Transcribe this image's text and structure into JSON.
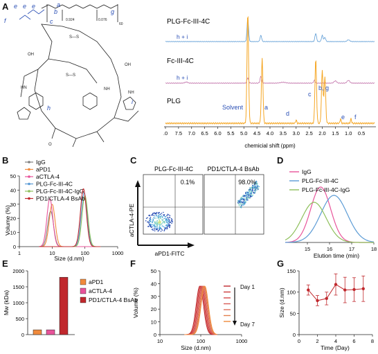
{
  "panel_labels": {
    "A": "A",
    "B": "B",
    "C": "C",
    "D": "D",
    "E": "E",
    "F": "F",
    "G": "G"
  },
  "structure_labels": {
    "e1": "e",
    "e2": "e",
    "e3": "e",
    "f": "f",
    "c": "c",
    "b": "b",
    "a": "a",
    "g": "g",
    "sub_a": "0.924",
    "sub_b": "0.076",
    "sub_g": "60",
    "h": "h",
    "i": "i"
  },
  "nmr": {
    "xlabel": "chemicial shift (ppm)",
    "ticks": [
      ".0",
      "7.5",
      "7.0",
      "6.5",
      "6.0",
      "5.5",
      "5.0",
      "4.5",
      "4.0",
      "3.5",
      "3.0",
      "2.5",
      "2.0",
      "1.5",
      "1.0",
      "0.5"
    ],
    "traces": [
      {
        "name": "PLG-Fc-III-4C",
        "annotation": "h + i",
        "color": "#5b9bd5"
      },
      {
        "name": "Fc-III-4C",
        "annotation": "h + i",
        "color": "#c06fa8"
      },
      {
        "name": "PLG",
        "annotation": "",
        "color": "#f5a623"
      }
    ],
    "peak_labels": {
      "solvent": "Solvent",
      "a": "a",
      "d": "d",
      "c": "c",
      "bg": "b, g",
      "e": "e",
      "f": "f"
    }
  },
  "chart_data": [
    {
      "type": "line",
      "panel": "B",
      "xlabel": "Size (d.nm)",
      "ylabel": "Volume (%)",
      "xscale": "log",
      "xlim": [
        1,
        1000
      ],
      "ylim": [
        0,
        50
      ],
      "x_ticks": [
        "1",
        "10",
        "100",
        "1000"
      ],
      "y_ticks": [
        "0",
        "10",
        "20",
        "30",
        "40",
        "50"
      ],
      "legend_placement": "top-left",
      "series": [
        {
          "name": "IgG",
          "color": "#7f7f7f",
          "peak_x": 9,
          "peak_y": 25
        },
        {
          "name": "aPD1",
          "color": "#f08a3c",
          "peak_x": 10,
          "peak_y": 30
        },
        {
          "name": "aCTLA-4",
          "color": "#e8539a",
          "peak_x": 8.5,
          "peak_y": 34
        },
        {
          "name": "PLG-Fc-III-4C",
          "color": "#5b9bd5",
          "peak_x": 95,
          "peak_y": 38
        },
        {
          "name": "PLG-Fc-III-4C-IgG",
          "color": "#8dbf5a",
          "peak_x": 100,
          "peak_y": 36
        },
        {
          "name": "PD1/CTLA-4 BsAb",
          "color": "#c0282d",
          "peak_x": 90,
          "peak_y": 41
        }
      ]
    },
    {
      "type": "scatter",
      "panel": "C",
      "xlabel": "aPD1-FITC",
      "ylabel": "aCTLA-4-PE",
      "plots": [
        {
          "title": "PLG-Fc-III-4C",
          "quadrant_value": "0.1%"
        },
        {
          "title": "PD1/CTLA-4 BsAb",
          "quadrant_value": "98.0%"
        }
      ]
    },
    {
      "type": "line",
      "panel": "D",
      "xlabel": "Elution time (min)",
      "xlim": [
        14,
        18
      ],
      "x_ticks": [
        "15",
        "16",
        "17",
        "18"
      ],
      "series": [
        {
          "name": "IgG",
          "color": "#e8539a",
          "peak_x": 15.6
        },
        {
          "name": "PLG-Fc-III-4C",
          "color": "#5b9bd5",
          "peak_x": 16.2
        },
        {
          "name": "PLG-Fc-III-4C-IgG",
          "color": "#8dbf5a",
          "peak_x": 15.3
        }
      ]
    },
    {
      "type": "bar",
      "panel": "E",
      "ylabel": "Mw (kDa)",
      "ylim": [
        0,
        2000
      ],
      "y_ticks": [
        "0",
        "500",
        "1000",
        "1500",
        "2000"
      ],
      "categories": [
        "aPD1",
        "aCTLA-4",
        "PD1/CTLA-4 BsAb"
      ],
      "values": [
        150,
        150,
        1800
      ],
      "colors": [
        "#f08a3c",
        "#e8539a",
        "#c0282d"
      ]
    },
    {
      "type": "line",
      "panel": "F",
      "xlabel": "Size (d.nm)",
      "ylabel": "Volume (%)",
      "xscale": "log",
      "xlim": [
        10,
        1000
      ],
      "ylim": [
        0,
        50
      ],
      "x_ticks": [
        "10",
        "100",
        "1000"
      ],
      "y_ticks": [
        "0",
        "10",
        "20",
        "30",
        "40",
        "50"
      ],
      "legend": {
        "start": "Day 1",
        "end": "Day 7"
      },
      "series_peak_x": [
        95,
        100,
        105,
        110,
        115,
        120,
        125
      ],
      "series_colors": [
        "#c0282d",
        "#cc3a3a",
        "#d44848",
        "#d85c56",
        "#dd6e5a",
        "#e27f4e",
        "#f08a3c"
      ]
    },
    {
      "type": "line",
      "panel": "G",
      "xlabel": "Time (Day)",
      "ylabel": "Size (d.nm)",
      "xlim": [
        0,
        8
      ],
      "ylim": [
        0,
        150
      ],
      "x_ticks": [
        "0",
        "2",
        "4",
        "6",
        "8"
      ],
      "y_ticks": [
        "0",
        "50",
        "100",
        "150"
      ],
      "x": [
        1,
        2,
        3,
        4,
        5,
        6,
        7
      ],
      "y": [
        105,
        80,
        85,
        118,
        105,
        106,
        108
      ],
      "err": [
        12,
        12,
        15,
        25,
        30,
        28,
        30
      ],
      "color": "#c0282d"
    }
  ]
}
